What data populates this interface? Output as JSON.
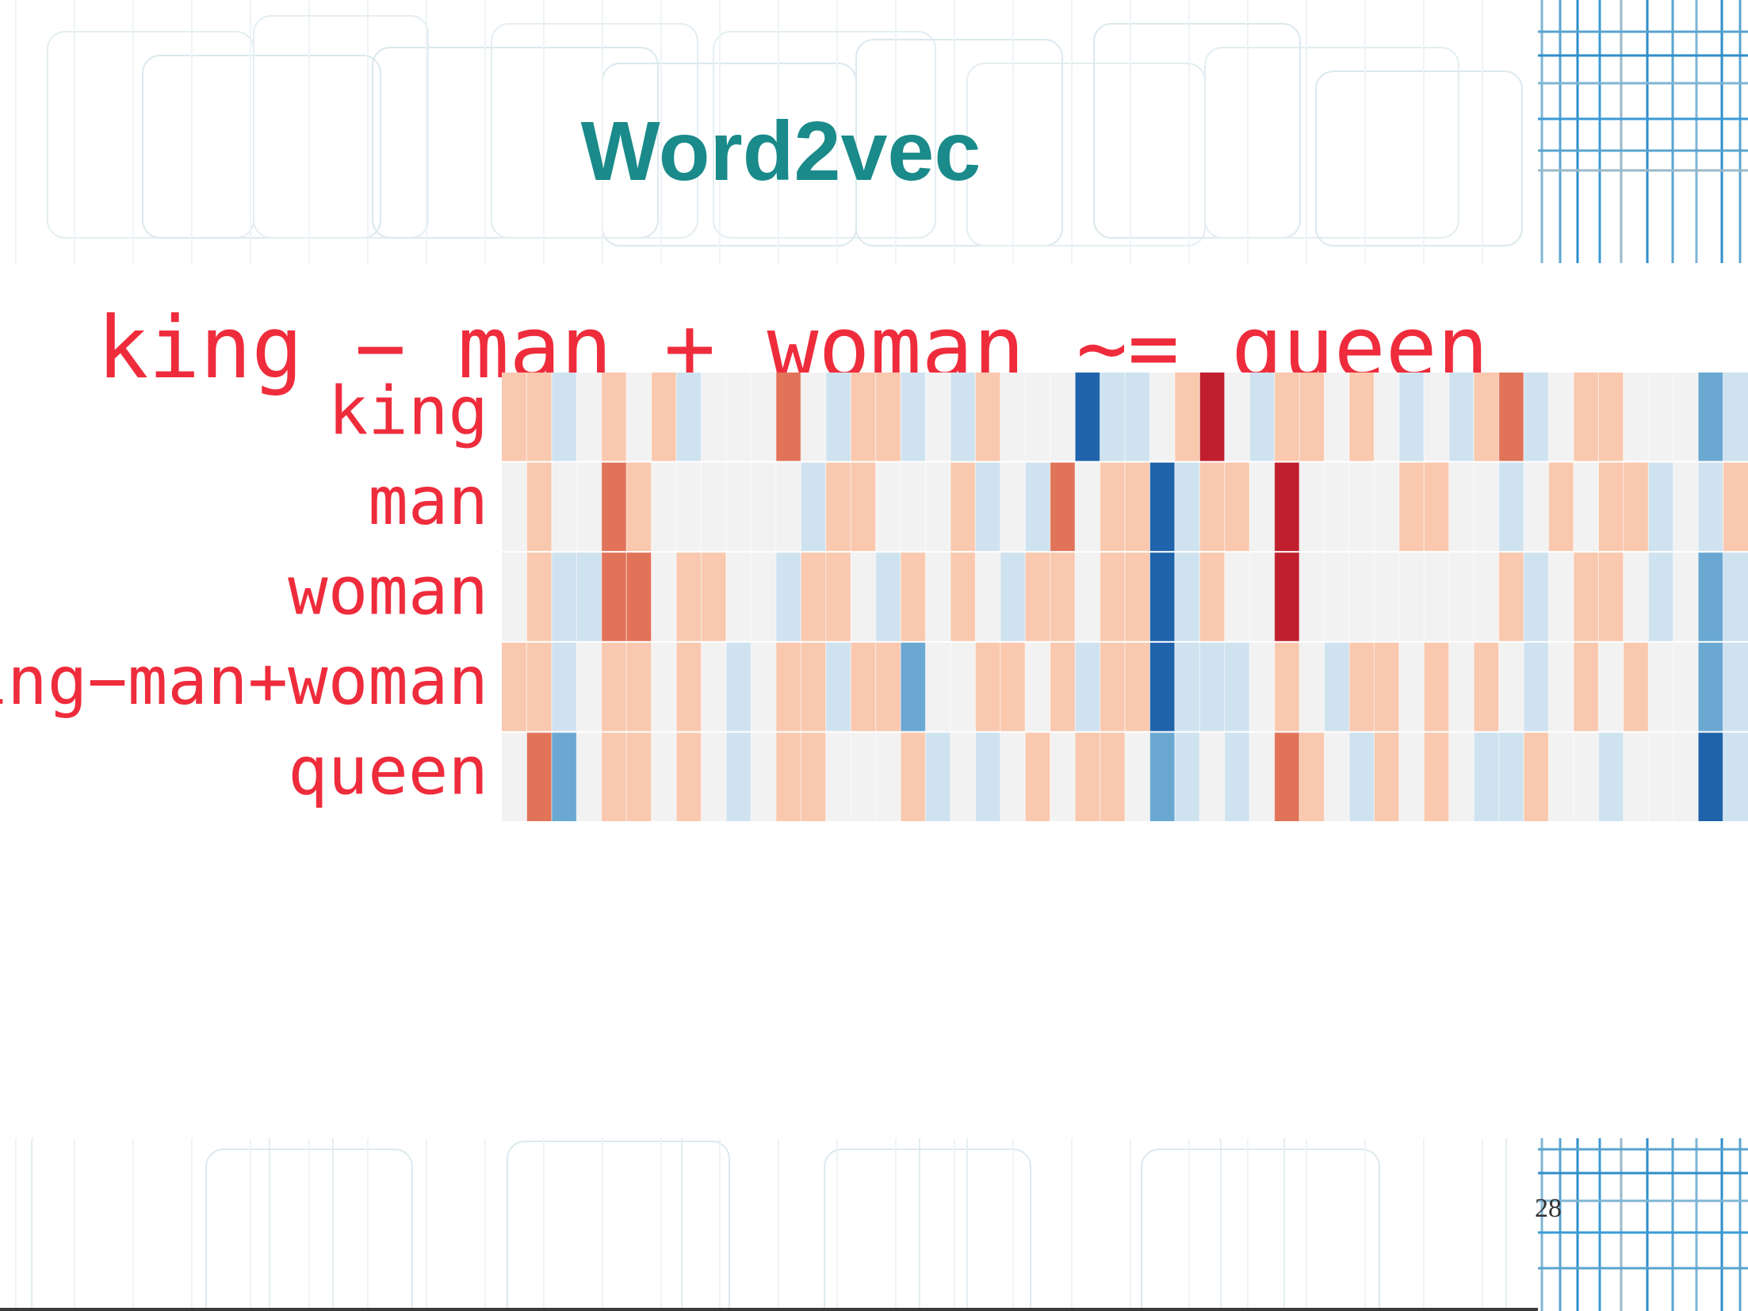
{
  "slide": {
    "title": "Word2vec",
    "equation": "king − man + woman ~= queen",
    "page_number": "28"
  },
  "colors": {
    "title": "#1a8a8a",
    "label": "#ee2c3c",
    "positive_strong": "#b2182b",
    "negative_strong": "#2166ac",
    "neutral": "#f2f2f2"
  },
  "chart_data": {
    "type": "heatmap",
    "title": "",
    "rows": [
      "king",
      "man",
      "woman",
      "king−man+woman",
      "queen"
    ],
    "columns": 50,
    "value_range": [
      -3,
      3
    ],
    "colormap": "RdBu (red = positive, blue = negative)",
    "values": [
      [
        1,
        1,
        -1,
        0,
        1,
        0,
        1,
        -1,
        0,
        0,
        0,
        2,
        0,
        -1,
        1,
        1,
        -1,
        0,
        -1,
        1,
        0,
        0,
        0,
        -3,
        -1,
        -1,
        0,
        1,
        3,
        0,
        -1,
        1,
        1,
        0,
        1,
        0,
        -1,
        0,
        -1,
        1,
        2,
        -1,
        0,
        1,
        1,
        0,
        0,
        0,
        -2,
        -1
      ],
      [
        0,
        1,
        0,
        0,
        2,
        1,
        0,
        0,
        0,
        0,
        0,
        0,
        -1,
        1,
        1,
        0,
        0,
        0,
        1,
        -1,
        0,
        -1,
        2,
        0,
        1,
        1,
        -3,
        -1,
        1,
        1,
        0,
        3,
        0,
        0,
        0,
        0,
        1,
        1,
        0,
        0,
        -1,
        0,
        1,
        0,
        1,
        1,
        -1,
        0,
        -1,
        1
      ],
      [
        0,
        1,
        -1,
        -1,
        2,
        2,
        0,
        1,
        1,
        0,
        0,
        -1,
        1,
        1,
        0,
        -1,
        1,
        0,
        1,
        0,
        -1,
        1,
        1,
        0,
        1,
        1,
        -3,
        -1,
        1,
        0,
        0,
        3,
        0,
        0,
        0,
        0,
        0,
        0,
        0,
        0,
        1,
        -1,
        0,
        1,
        1,
        0,
        -1,
        0,
        -2,
        -1
      ],
      [
        1,
        1,
        -1,
        0,
        1,
        1,
        0,
        1,
        0,
        -1,
        0,
        1,
        1,
        -1,
        1,
        1,
        -2,
        0,
        0,
        1,
        1,
        0,
        1,
        -1,
        1,
        1,
        -3,
        -1,
        -1,
        -1,
        0,
        1,
        0,
        -1,
        1,
        1,
        0,
        1,
        0,
        1,
        0,
        -1,
        0,
        1,
        0,
        1,
        0,
        0,
        -2,
        -1
      ],
      [
        0,
        2,
        -2,
        0,
        1,
        1,
        0,
        1,
        0,
        -1,
        0,
        1,
        1,
        0,
        0,
        0,
        1,
        -1,
        0,
        -1,
        0,
        1,
        0,
        1,
        1,
        0,
        -2,
        -1,
        0,
        -1,
        0,
        2,
        1,
        0,
        -1,
        1,
        0,
        1,
        0,
        -1,
        -1,
        1,
        0,
        0,
        -1,
        0,
        0,
        0,
        -3,
        -1
      ]
    ]
  }
}
